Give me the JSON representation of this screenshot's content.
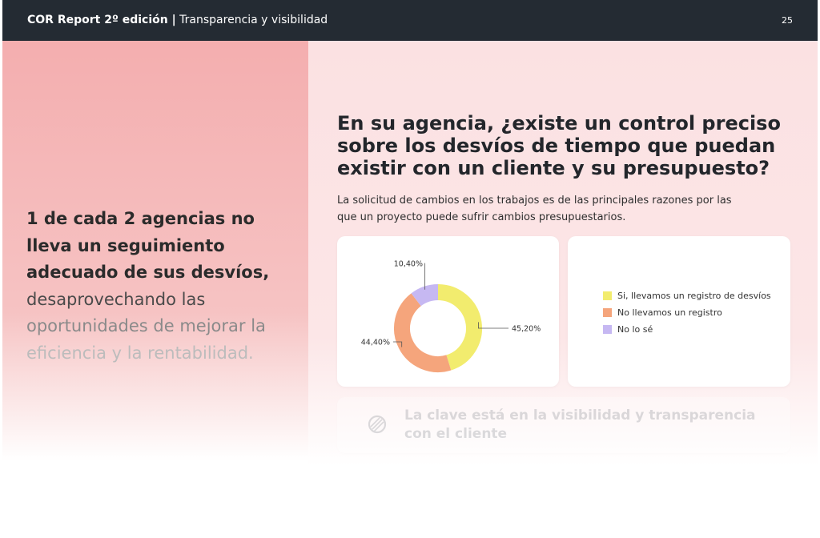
{
  "header": {
    "report_title": "COR Report 2º edición |",
    "section_title": "Transparencia y visibilidad",
    "page_number": "25"
  },
  "left_panel": {
    "highlight_lines": [
      "1 de cada 2 agencias no",
      "lleva un seguimiento",
      "adecuado de sus desvíos,"
    ],
    "body_lines": [
      "desaprovechando las",
      "oportunidades de mejorar la",
      "eficiencia y la rentabilidad."
    ]
  },
  "main": {
    "question_lines": [
      "En su agencia, ¿existe un control preciso",
      "sobre los desvíos de tiempo que puedan",
      "existir con un cliente y su presupuesto?"
    ],
    "subtitle_lines": [
      "La solicitud de cambios en los trabajos es de las principales razones por las",
      "que un proyecto puede sufrir cambios presupuestarios."
    ]
  },
  "chart_data": {
    "type": "pie",
    "variant": "donut",
    "categories": [
      "Si, llevamos un registro de desvíos",
      "No llevamos un registro",
      "No lo sé"
    ],
    "values": [
      45.2,
      44.4,
      10.4
    ],
    "data_labels": [
      "45,20%",
      "44,40%",
      "10,40%"
    ],
    "colors": [
      "#f2ec6e",
      "#f5a57c",
      "#c6b8f2"
    ],
    "legend_position": "right"
  },
  "legend": {
    "items": [
      {
        "label": "Si, llevamos un registro de desvíos",
        "color": "#f2ec6e"
      },
      {
        "label": "No llevamos un registro",
        "color": "#f5a57c"
      },
      {
        "label": "No lo sé",
        "color": "#c6b8f2"
      }
    ]
  },
  "callout": {
    "icon": "lightbulb-icon",
    "lines": [
      "La clave está en la visibilidad y transparencia",
      "con el cliente"
    ]
  }
}
